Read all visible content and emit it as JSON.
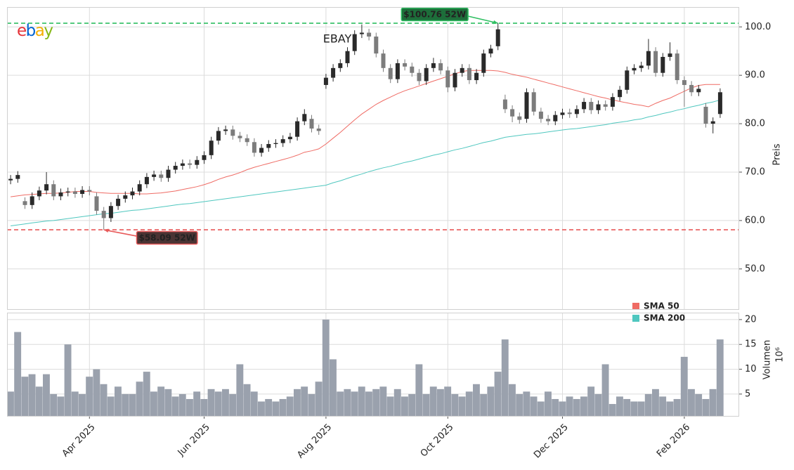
{
  "chart_data": [
    {
      "type": "candlestick",
      "title": "EBAY",
      "logo": {
        "letters": [
          "e",
          "b",
          "a",
          "y"
        ],
        "colors": [
          "#e53238",
          "#0064d2",
          "#f5af02",
          "#86b817"
        ]
      },
      "categories": [
        null,
        null,
        null,
        null,
        null,
        null,
        null,
        null,
        null,
        null,
        null,
        "Apr 2025",
        null,
        null,
        null,
        null,
        null,
        null,
        null,
        null,
        null,
        null,
        null,
        null,
        null,
        null,
        null,
        "Jun 2025",
        null,
        null,
        null,
        null,
        null,
        null,
        null,
        null,
        null,
        null,
        null,
        null,
        null,
        null,
        null,
        null,
        "Aug 2025",
        null,
        null,
        null,
        null,
        null,
        null,
        null,
        null,
        null,
        null,
        null,
        null,
        null,
        null,
        null,
        null,
        "Oct 2025",
        null,
        null,
        null,
        null,
        null,
        null,
        null,
        null,
        null,
        null,
        null,
        null,
        null,
        null,
        null,
        "Dec 2025",
        null,
        null,
        null,
        null,
        null,
        null,
        null,
        null,
        null,
        null,
        null,
        null,
        null,
        null,
        null,
        null,
        "Feb 2026",
        null,
        null,
        null,
        null,
        null
      ],
      "open": [
        68.3,
        68.6,
        64.0,
        63.2,
        65.0,
        66.2,
        67.5,
        65.0,
        65.8,
        66.0,
        65.5,
        66.3,
        65.0,
        62.0,
        60.5,
        63.0,
        64.5,
        65.2,
        66.0,
        67.5,
        69.0,
        69.5,
        68.8,
        70.5,
        71.3,
        71.8,
        71.5,
        72.5,
        73.5,
        76.5,
        78.5,
        78.8,
        77.5,
        77.0,
        76.2,
        74.0,
        75.0,
        75.8,
        76.0,
        76.8,
        77.3,
        80.5,
        81.0,
        79.0,
        88.0,
        89.5,
        91.5,
        92.5,
        95.0,
        98.5,
        98.8,
        98.0,
        94.5,
        91.5,
        89.2,
        92.5,
        91.8,
        90.5,
        88.8,
        91.5,
        92.5,
        91.0,
        87.5,
        90.5,
        91.5,
        89.0,
        90.5,
        94.5,
        96.0,
        85.0,
        83.0,
        81.5,
        81.0,
        86.5,
        82.5,
        81.0,
        80.5,
        81.8,
        82.3,
        82.0,
        83.0,
        84.5,
        82.8,
        84.0,
        83.5,
        85.5,
        87.0,
        91.0,
        91.5,
        92.0,
        95.0,
        90.5,
        93.8,
        94.5,
        89.0,
        88.0,
        86.5,
        83.5,
        80.0,
        82.0
      ],
      "high": [
        69.4,
        70.2,
        64.8,
        65.8,
        67.0,
        70.0,
        68.3,
        66.6,
        66.8,
        66.8,
        67.1,
        67.1,
        65.8,
        62.8,
        63.8,
        65.3,
        66.0,
        66.8,
        68.3,
        69.8,
        70.3,
        70.3,
        71.3,
        72.1,
        72.6,
        72.6,
        73.3,
        74.3,
        77.3,
        79.3,
        79.6,
        79.6,
        78.3,
        77.8,
        77.0,
        75.8,
        76.6,
        76.8,
        77.6,
        78.1,
        81.3,
        83.0,
        81.8,
        79.8,
        90.3,
        92.3,
        93.3,
        95.8,
        99.3,
        100.5,
        99.6,
        98.8,
        95.3,
        92.3,
        93.3,
        93.3,
        92.6,
        91.3,
        92.3,
        93.6,
        93.3,
        91.8,
        91.3,
        92.3,
        92.3,
        91.3,
        95.3,
        96.3,
        100.76,
        86.0,
        83.8,
        82.3,
        87.3,
        87.3,
        83.3,
        81.8,
        82.6,
        83.1,
        83.1,
        83.8,
        85.3,
        85.3,
        84.8,
        84.8,
        86.3,
        87.8,
        91.8,
        92.3,
        92.8,
        97.5,
        95.8,
        94.6,
        96.8,
        95.3,
        89.8,
        88.8,
        88.0,
        84.3,
        81.3,
        87.3
      ],
      "low": [
        67.5,
        67.8,
        62.4,
        62.4,
        64.2,
        65.4,
        64.2,
        64.2,
        65.0,
        64.7,
        64.7,
        65.2,
        61.2,
        58.09,
        59.7,
        62.2,
        63.7,
        64.4,
        65.2,
        66.7,
        68.2,
        68.0,
        68.0,
        69.7,
        70.5,
        70.7,
        70.7,
        71.7,
        72.7,
        75.7,
        77.7,
        76.7,
        76.2,
        75.4,
        73.2,
        73.2,
        74.2,
        75.0,
        75.2,
        76.0,
        76.5,
        79.7,
        78.2,
        77.7,
        87.2,
        88.7,
        90.7,
        91.7,
        94.2,
        97.7,
        97.2,
        93.7,
        90.7,
        88.4,
        88.4,
        91.0,
        89.7,
        88.0,
        88.0,
        90.7,
        90.2,
        86.5,
        86.7,
        89.7,
        88.2,
        88.2,
        89.7,
        93.7,
        95.2,
        82.2,
        80.3,
        80.0,
        80.2,
        81.7,
        80.2,
        79.7,
        79.7,
        81.0,
        81.2,
        81.2,
        82.2,
        82.0,
        82.0,
        82.7,
        82.7,
        84.7,
        86.2,
        90.2,
        90.7,
        91.2,
        89.7,
        89.7,
        93.0,
        88.2,
        83.5,
        85.7,
        85.7,
        79.2,
        78.0,
        81.2
      ],
      "close": [
        68.6,
        69.4,
        63.2,
        65.0,
        66.2,
        67.5,
        65.0,
        65.8,
        66.0,
        65.5,
        66.3,
        66.0,
        62.0,
        60.5,
        63.0,
        64.5,
        65.2,
        66.0,
        67.5,
        69.0,
        69.5,
        68.8,
        70.5,
        71.3,
        71.8,
        71.5,
        72.5,
        73.5,
        76.5,
        78.5,
        78.8,
        77.5,
        77.0,
        76.2,
        74.0,
        75.0,
        75.8,
        76.0,
        76.8,
        77.3,
        80.5,
        82.0,
        79.0,
        78.5,
        89.5,
        91.5,
        92.5,
        95.0,
        98.5,
        98.8,
        98.0,
        94.5,
        91.5,
        89.2,
        92.5,
        91.8,
        90.5,
        88.8,
        91.5,
        92.5,
        91.0,
        87.5,
        90.5,
        91.5,
        89.0,
        90.5,
        94.5,
        95.5,
        99.5,
        83.0,
        81.5,
        80.8,
        86.5,
        82.5,
        81.0,
        80.5,
        81.8,
        82.3,
        82.0,
        83.0,
        84.5,
        82.8,
        84.0,
        83.5,
        85.5,
        87.0,
        91.0,
        91.5,
        92.0,
        95.0,
        90.5,
        93.8,
        94.5,
        89.0,
        88.0,
        86.5,
        87.2,
        80.0,
        80.5,
        86.5
      ],
      "up_color": "#2a2a2a",
      "down_color": "#7c7c7c",
      "series": [
        {
          "name": "SMA 50",
          "color": "#ef6b64",
          "values": [
            64.9,
            65.1,
            65.3,
            65.4,
            65.5,
            65.6,
            65.6,
            65.7,
            65.8,
            66.0,
            66.0,
            66.0,
            65.8,
            65.7,
            65.6,
            65.6,
            65.6,
            65.6,
            65.5,
            65.5,
            65.6,
            65.7,
            65.9,
            66.1,
            66.4,
            66.7,
            67.0,
            67.4,
            67.9,
            68.5,
            69.0,
            69.4,
            69.9,
            70.5,
            71.0,
            71.4,
            71.8,
            72.2,
            72.6,
            73.0,
            73.5,
            74.1,
            74.4,
            74.8,
            75.8,
            77.0,
            78.2,
            79.5,
            80.8,
            82.0,
            83.0,
            84.0,
            84.8,
            85.5,
            86.2,
            86.8,
            87.3,
            87.8,
            88.3,
            88.8,
            89.3,
            89.8,
            90.3,
            90.8,
            91.0,
            91.0,
            91.0,
            91.0,
            90.9,
            90.6,
            90.2,
            89.9,
            89.6,
            89.2,
            88.8,
            88.4,
            88.0,
            87.6,
            87.2,
            86.8,
            86.4,
            86.0,
            85.6,
            85.3,
            84.9,
            84.6,
            84.3,
            84.0,
            83.8,
            83.5,
            84.2,
            84.8,
            85.3,
            86.0,
            86.7,
            87.4,
            87.9,
            88.1,
            88.1,
            88.1
          ]
        },
        {
          "name": "SMA 200",
          "color": "#4fc7bf",
          "values": [
            58.9,
            59.1,
            59.3,
            59.5,
            59.7,
            59.9,
            60.0,
            60.2,
            60.4,
            60.6,
            60.8,
            61.0,
            61.2,
            61.4,
            61.5,
            61.7,
            61.9,
            62.1,
            62.2,
            62.4,
            62.6,
            62.8,
            63.0,
            63.2,
            63.4,
            63.5,
            63.7,
            63.9,
            64.1,
            64.3,
            64.5,
            64.7,
            64.9,
            65.1,
            65.3,
            65.5,
            65.7,
            65.9,
            66.1,
            66.3,
            66.5,
            66.7,
            66.9,
            67.1,
            67.3,
            67.8,
            68.2,
            68.7,
            69.2,
            69.6,
            70.1,
            70.5,
            70.9,
            71.2,
            71.6,
            72.0,
            72.3,
            72.7,
            73.1,
            73.5,
            73.8,
            74.2,
            74.6,
            74.9,
            75.3,
            75.7,
            76.1,
            76.4,
            76.8,
            77.2,
            77.4,
            77.6,
            77.8,
            77.9,
            78.1,
            78.3,
            78.5,
            78.7,
            78.9,
            79.0,
            79.2,
            79.4,
            79.6,
            79.8,
            80.1,
            80.3,
            80.5,
            80.8,
            81.0,
            81.4,
            81.7,
            82.1,
            82.4,
            82.8,
            83.1,
            83.5,
            83.8,
            84.2,
            84.5,
            84.9
          ]
        }
      ],
      "annotations": [
        {
          "text": "$100.76 52W",
          "value": 100.76,
          "color": "#2fbf62",
          "box_color": "#1d6e3a",
          "text_color": "#c9f7d6"
        },
        {
          "text": "$58.09 52W",
          "value": 58.09,
          "color": "#e85a5a",
          "box_color": "#4b3434",
          "text_color": "#ff6b6b"
        }
      ],
      "ylabel": "Preis",
      "ylim": [
        41.7,
        104.1
      ],
      "yticks": [
        {
          "value": 50,
          "label": "50.0"
        },
        {
          "value": 60,
          "label": "60.0"
        },
        {
          "value": 70,
          "label": "70.0"
        },
        {
          "value": 80,
          "label": "80.0"
        },
        {
          "value": 90,
          "label": "90.0"
        },
        {
          "value": 100,
          "label": "100.0"
        }
      ],
      "grid": true,
      "legend": "lower right"
    },
    {
      "type": "bar",
      "values": [
        5.5,
        17.5,
        8.5,
        9.0,
        6.5,
        9.0,
        5.0,
        4.5,
        15.0,
        5.5,
        5.0,
        8.5,
        10.0,
        7.0,
        4.5,
        6.5,
        5.0,
        5.0,
        7.5,
        9.5,
        5.5,
        6.5,
        6.0,
        4.5,
        5.0,
        4.0,
        5.5,
        4.0,
        6.0,
        5.5,
        6.0,
        5.0,
        11.0,
        7.0,
        5.5,
        3.5,
        4.0,
        3.5,
        4.0,
        4.5,
        6.0,
        6.5,
        5.0,
        7.5,
        20.0,
        12.0,
        5.5,
        6.0,
        5.5,
        6.5,
        5.5,
        6.0,
        6.5,
        4.5,
        6.0,
        4.5,
        5.0,
        11.0,
        5.0,
        6.5,
        6.0,
        6.5,
        5.0,
        4.5,
        5.5,
        7.0,
        5.0,
        6.5,
        9.5,
        16.0,
        7.0,
        5.0,
        5.5,
        4.5,
        3.5,
        5.5,
        4.0,
        3.5,
        4.5,
        4.0,
        4.5,
        6.5,
        5.0,
        11.0,
        3.0,
        4.5,
        4.0,
        3.5,
        3.5,
        5.0,
        6.0,
        4.5,
        3.5,
        4.0,
        12.5,
        6.0,
        5.0,
        4.0,
        6.0,
        16.0
      ],
      "color": "#9aa1ad",
      "ylabel": "Volumen",
      "yunit": "10⁶",
      "ylim": [
        0.6,
        21.4
      ],
      "yticks": [
        5,
        10,
        15,
        20
      ],
      "grid": true
    }
  ]
}
